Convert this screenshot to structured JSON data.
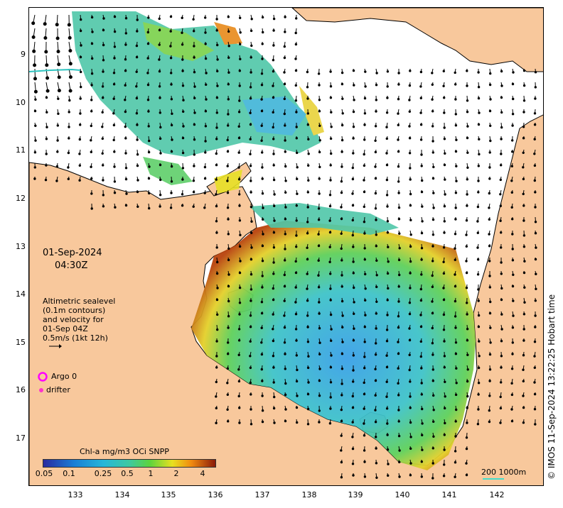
{
  "map": {
    "y_ticks": [
      "9",
      "10",
      "11",
      "12",
      "13",
      "14",
      "15",
      "16",
      "17"
    ],
    "x_ticks": [
      "133",
      "134",
      "135",
      "136",
      "137",
      "138",
      "139",
      "140",
      "141",
      "142"
    ],
    "date": "01-Sep-2024",
    "time": "04:30Z",
    "legend_lines": "Altimetric sealevel\n(0.1m contours)\nand velocity for\n01-Sep 04Z\n0.5m/s (1kt 12h)",
    "argo_label": "Argo 0",
    "drifter_label": "drifter",
    "argo_color": "#ff00ff",
    "drifter_color": "#ff33cc",
    "land_color": "#f8c89c",
    "colorbar_title": "Chl-a mg/m3 OCi SNPP",
    "colorbar_ticks": [
      "0.05",
      "0.1",
      "0.25",
      "0.5",
      "1",
      "2",
      "4"
    ],
    "scale_label": "200  1000m",
    "credit": "© IMOS 11-Sep-2024 13:22:25 Hobart time"
  }
}
